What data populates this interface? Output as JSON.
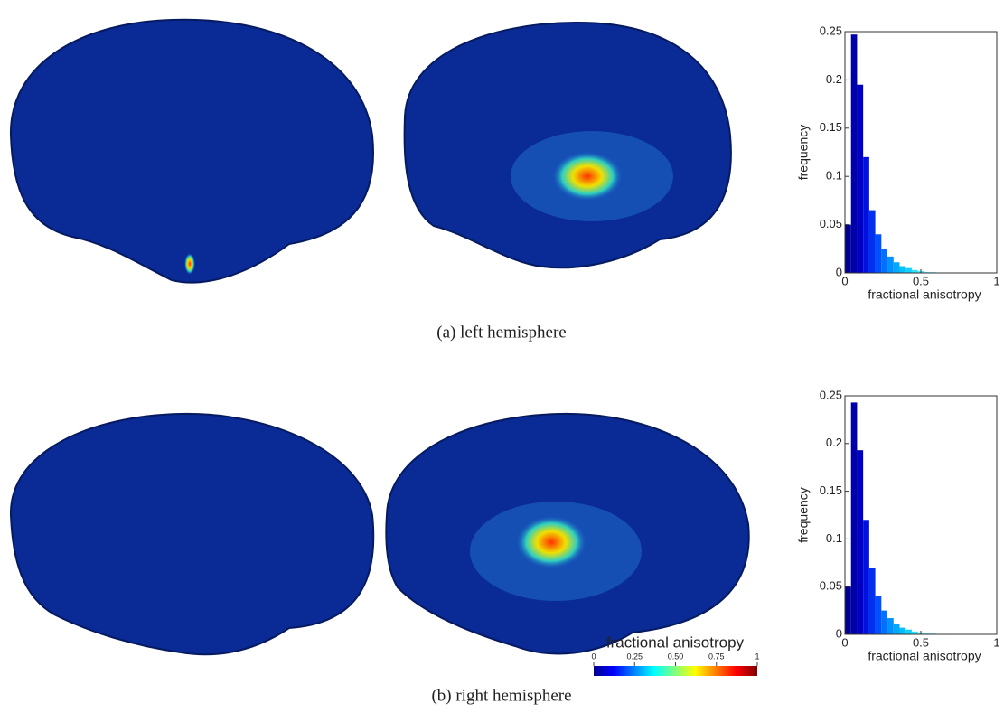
{
  "captions": [
    "(a)  left hemisphere",
    "(b)  right hemisphere"
  ],
  "colorbar": {
    "title": "fractional anisotropy",
    "ticks": [
      0,
      0.25,
      {
        "value": 0.5,
        "label": "0.50"
      },
      0.75,
      1
    ]
  },
  "chart_data": [
    {
      "type": "histogram",
      "xlabel": "fractional anisotropy",
      "ylabel": "frequency",
      "bins": [
        0,
        0.04,
        0.08,
        0.12,
        0.16,
        0.2,
        0.24,
        0.28,
        0.32,
        0.36,
        0.4,
        0.44,
        0.48,
        0.52,
        0.56,
        0.6
      ],
      "values": [
        0.05,
        0.247,
        0.195,
        0.12,
        0.065,
        0.04,
        0.025,
        0.017,
        0.011,
        0.007,
        0.005,
        0.003,
        0.002,
        0.001,
        0.001
      ],
      "colors": [
        "#00008f",
        "#0000a8",
        "#0000c4",
        "#0010e0",
        "#0030f0",
        "#0050ff",
        "#0070ff",
        "#0090ff",
        "#00a8ff",
        "#00c0ff",
        "#10d0ff",
        "#30e0ff",
        "#50ecff",
        "#70f4ff",
        "#90faff"
      ],
      "xlim": [
        0,
        1
      ],
      "xticks": [
        0,
        0.5,
        1
      ],
      "ylim": [
        0,
        0.25
      ],
      "yticks": [
        0,
        0.05,
        0.1,
        0.15,
        0.2,
        0.25
      ]
    },
    {
      "type": "histogram",
      "xlabel": "fractional anisotropy",
      "ylabel": "frequency",
      "bins": [
        0,
        0.04,
        0.08,
        0.12,
        0.16,
        0.2,
        0.24,
        0.28,
        0.32,
        0.36,
        0.4,
        0.44,
        0.48,
        0.52,
        0.56,
        0.6
      ],
      "values": [
        0.05,
        0.243,
        0.193,
        0.12,
        0.07,
        0.04,
        0.025,
        0.017,
        0.011,
        0.007,
        0.005,
        0.003,
        0.002,
        0.001,
        0.001
      ],
      "colors": [
        "#00008f",
        "#0000a8",
        "#0000c4",
        "#0010e0",
        "#0030f0",
        "#0050ff",
        "#0070ff",
        "#0090ff",
        "#00a8ff",
        "#00c0ff",
        "#10d0ff",
        "#30e0ff",
        "#50ecff",
        "#70f4ff",
        "#90faff"
      ],
      "xlim": [
        0,
        1
      ],
      "xticks": [
        0,
        0.5,
        1
      ],
      "ylim": [
        0,
        0.25
      ],
      "yticks": [
        0,
        0.05,
        0.1,
        0.15,
        0.2,
        0.25
      ]
    }
  ]
}
